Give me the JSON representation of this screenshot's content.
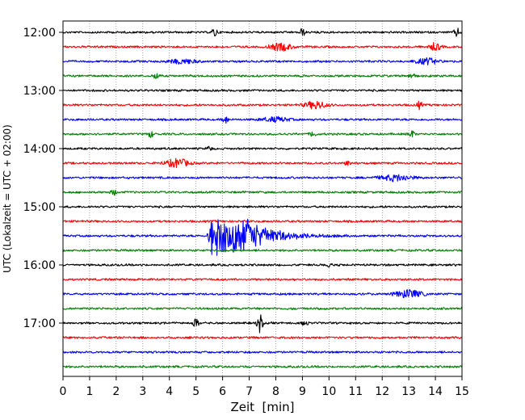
{
  "chart_data": {
    "type": "line",
    "title": "",
    "xlabel": "Zeit  [min]",
    "ylabel": "UTC (Lokalzeit = UTC + 02:00)",
    "xlim": [
      0,
      15
    ],
    "x_ticks": [
      0,
      1,
      2,
      3,
      4,
      5,
      6,
      7,
      8,
      9,
      10,
      11,
      12,
      13,
      14,
      15
    ],
    "x_tick_labels": [
      "0",
      "1",
      "2",
      "3",
      "4",
      "5",
      "6",
      "7",
      "8",
      "9",
      "10",
      "11",
      "12",
      "13",
      "14",
      "15"
    ],
    "y_tick_labels": [
      "12:00",
      "13:00",
      "14:00",
      "15:00",
      "16:00",
      "17:00"
    ],
    "trace_interval_minutes": 15,
    "start_time": "12:00",
    "grid": {
      "vertical": true,
      "style": "dotted"
    },
    "colors": [
      "#000000",
      "#ff0000",
      "#0000ff",
      "#008000"
    ],
    "traces": [
      {
        "start": "12:00",
        "color": "#000000",
        "events": [
          {
            "t": 5.7,
            "amp": 0.3,
            "dur": 0.1
          },
          {
            "t": 9.0,
            "amp": 0.25,
            "dur": 0.1
          },
          {
            "t": 14.8,
            "amp": 0.3,
            "dur": 0.1
          }
        ]
      },
      {
        "start": "12:15",
        "color": "#ff0000",
        "events": [
          {
            "t": 8.2,
            "amp": 0.25,
            "dur": 0.4
          },
          {
            "t": 14.0,
            "amp": 0.25,
            "dur": 0.2
          }
        ]
      },
      {
        "start": "12:30",
        "color": "#0000ff",
        "events": [
          {
            "t": 4.5,
            "amp": 0.15,
            "dur": 0.5
          },
          {
            "t": 13.7,
            "amp": 0.2,
            "dur": 0.4
          }
        ]
      },
      {
        "start": "12:45",
        "color": "#008000",
        "events": [
          {
            "t": 3.5,
            "amp": 0.2,
            "dur": 0.1
          },
          {
            "t": 13.1,
            "amp": 0.25,
            "dur": 0.1
          }
        ]
      },
      {
        "start": "13:00",
        "color": "#000000",
        "events": []
      },
      {
        "start": "13:15",
        "color": "#ff0000",
        "events": [
          {
            "t": 9.5,
            "amp": 0.25,
            "dur": 0.4
          },
          {
            "t": 13.4,
            "amp": 0.25,
            "dur": 0.1
          }
        ]
      },
      {
        "start": "13:30",
        "color": "#0000ff",
        "events": [
          {
            "t": 6.1,
            "amp": 0.25,
            "dur": 0.1
          },
          {
            "t": 8.0,
            "amp": 0.15,
            "dur": 0.5
          }
        ]
      },
      {
        "start": "13:45",
        "color": "#008000",
        "events": [
          {
            "t": 3.3,
            "amp": 0.2,
            "dur": 0.1
          },
          {
            "t": 9.4,
            "amp": 0.2,
            "dur": 0.1
          },
          {
            "t": 13.1,
            "amp": 0.25,
            "dur": 0.1
          }
        ]
      },
      {
        "start": "14:00",
        "color": "#000000",
        "events": [
          {
            "t": 5.5,
            "amp": 0.15,
            "dur": 0.1
          }
        ]
      },
      {
        "start": "14:15",
        "color": "#ff0000",
        "events": [
          {
            "t": 4.3,
            "amp": 0.3,
            "dur": 0.4
          },
          {
            "t": 10.7,
            "amp": 0.15,
            "dur": 0.1
          }
        ]
      },
      {
        "start": "14:30",
        "color": "#0000ff",
        "events": [
          {
            "t": 12.5,
            "amp": 0.2,
            "dur": 0.6
          }
        ]
      },
      {
        "start": "14:45",
        "color": "#008000",
        "events": [
          {
            "t": 1.9,
            "amp": 0.2,
            "dur": 0.1
          }
        ]
      },
      {
        "start": "15:00",
        "color": "#000000",
        "events": []
      },
      {
        "start": "15:15",
        "color": "#ff0000",
        "events": []
      },
      {
        "start": "15:30",
        "color": "#0000ff",
        "events": [
          {
            "t": 6.5,
            "amp": 1.45,
            "dur": 2.2,
            "main": true
          }
        ]
      },
      {
        "start": "15:45",
        "color": "#008000",
        "events": []
      },
      {
        "start": "16:00",
        "color": "#000000",
        "events": [
          {
            "t": 10.0,
            "amp": 0.15,
            "dur": 0.1
          }
        ]
      },
      {
        "start": "16:15",
        "color": "#ff0000",
        "events": []
      },
      {
        "start": "16:30",
        "color": "#0000ff",
        "events": [
          {
            "t": 13.0,
            "amp": 0.25,
            "dur": 0.5
          }
        ]
      },
      {
        "start": "16:45",
        "color": "#008000",
        "events": []
      },
      {
        "start": "17:00",
        "color": "#000000",
        "events": [
          {
            "t": 5.0,
            "amp": 0.3,
            "dur": 0.1
          },
          {
            "t": 7.4,
            "amp": 0.6,
            "dur": 0.1
          },
          {
            "t": 9.1,
            "amp": 0.2,
            "dur": 0.1
          }
        ]
      },
      {
        "start": "17:15",
        "color": "#ff0000",
        "events": []
      },
      {
        "start": "17:30",
        "color": "#0000ff",
        "events": []
      },
      {
        "start": "17:45",
        "color": "#008000",
        "events": []
      }
    ]
  }
}
